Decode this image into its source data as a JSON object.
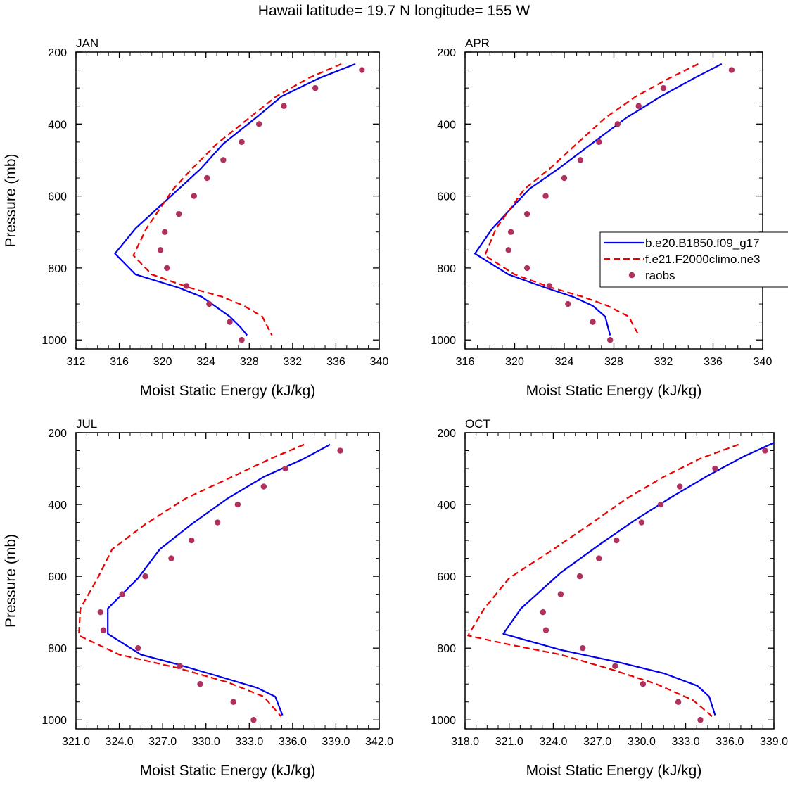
{
  "figure": {
    "title": "Hawaii  latitude= 19.7 N longitude= 155 W"
  },
  "legend": {
    "entries": [
      {
        "label": "b.e20.B1850.f09_g17",
        "style": "line",
        "color": "#0000ee"
      },
      {
        "label": "f.e21.F2000climo.ne3",
        "style": "dashed",
        "color": "#ee0000"
      },
      {
        "label": "raobs",
        "style": "marker",
        "color": "#b03060"
      }
    ]
  },
  "chart_data": [
    {
      "type": "line",
      "panel_label": "JAN",
      "xlabel": "Moist Static Energy (kJ/kg)",
      "ylabel": "Pressure (mb)",
      "xlim": [
        312,
        340
      ],
      "xticks": [
        312,
        316,
        320,
        324,
        328,
        332,
        336,
        340
      ],
      "xtick_labels": [
        "312",
        "316",
        "320",
        "324",
        "328",
        "332",
        "336",
        "340"
      ],
      "ylim": [
        1025,
        200
      ],
      "yticks": [
        200,
        400,
        600,
        800,
        1000
      ],
      "ytick_labels": [
        "200",
        "400",
        "600",
        "800",
        "1000"
      ],
      "series": [
        {
          "name": "b.e20.B1850.f09_g17",
          "style": "line",
          "color": "#0000ee",
          "x": [
            337.8,
            334.5,
            331.0,
            328.6,
            325.6,
            323.5,
            321.5,
            317.5,
            315.6,
            317.5,
            321.5,
            323.6,
            324.8,
            326.2,
            327.2,
            327.8
          ],
          "y": [
            233,
            272,
            323,
            383,
            455,
            525,
            580,
            690,
            760,
            818,
            855,
            880,
            905,
            935,
            965,
            987
          ]
        },
        {
          "name": "f.e21.F2000climo.ne3",
          "style": "dashed",
          "color": "#ee0000",
          "x": [
            336.5,
            333.5,
            330.5,
            328.0,
            325.0,
            322.7,
            321.0,
            318.5,
            317.3,
            319.0,
            322.5,
            325.5,
            327.5,
            329.2,
            330.1
          ],
          "y": [
            233,
            272,
            323,
            383,
            455,
            525,
            580,
            690,
            765,
            818,
            855,
            880,
            905,
            935,
            987
          ]
        },
        {
          "name": "raobs",
          "style": "marker",
          "color": "#b03060",
          "x": [
            338.4,
            334.1,
            331.2,
            328.9,
            327.3,
            325.6,
            324.1,
            322.9,
            321.5,
            320.2,
            319.8,
            320.4,
            322.2,
            324.3,
            326.2,
            327.3
          ],
          "y": [
            250,
            300,
            350,
            400,
            450,
            500,
            550,
            600,
            650,
            700,
            750,
            800,
            850,
            900,
            950,
            1000
          ]
        }
      ]
    },
    {
      "type": "line",
      "panel_label": "APR",
      "xlabel": "Moist Static Energy (kJ/kg)",
      "ylabel": "",
      "xlim": [
        316,
        340
      ],
      "xticks": [
        316,
        320,
        324,
        328,
        332,
        336,
        340
      ],
      "xtick_labels": [
        "316",
        "320",
        "324",
        "328",
        "332",
        "336",
        "340"
      ],
      "ylim": [
        1025,
        200
      ],
      "yticks": [
        200,
        400,
        600,
        800,
        1000
      ],
      "ytick_labels": [
        "200",
        "400",
        "600",
        "800",
        "1000"
      ],
      "series": [
        {
          "name": "b.e20.B1850.f09_g17",
          "style": "line",
          "color": "#0000ee",
          "x": [
            336.7,
            334.5,
            331.8,
            329.0,
            326.2,
            323.5,
            321.2,
            318.2,
            316.8,
            319.5,
            322.5,
            324.7,
            326.3,
            327.3,
            327.7
          ],
          "y": [
            233,
            272,
            323,
            383,
            455,
            525,
            580,
            690,
            760,
            818,
            855,
            880,
            905,
            935,
            987
          ]
        },
        {
          "name": "f.e21.F2000climo.ne3",
          "style": "dashed",
          "color": "#ee0000",
          "x": [
            334.8,
            332.5,
            329.8,
            327.3,
            325.0,
            322.8,
            320.8,
            318.5,
            317.6,
            320.0,
            323.0,
            325.5,
            327.5,
            329.2,
            330.0
          ],
          "y": [
            233,
            272,
            323,
            383,
            455,
            525,
            580,
            690,
            765,
            818,
            855,
            880,
            905,
            935,
            987
          ]
        },
        {
          "name": "raobs",
          "style": "marker",
          "color": "#b03060",
          "x": [
            337.5,
            332.0,
            330.0,
            328.3,
            326.8,
            325.3,
            324.0,
            322.5,
            321.0,
            319.7,
            319.5,
            321.0,
            322.8,
            324.3,
            326.3,
            327.7
          ],
          "y": [
            250,
            300,
            350,
            400,
            450,
            500,
            550,
            600,
            650,
            700,
            750,
            800,
            850,
            900,
            950,
            1000
          ]
        }
      ]
    },
    {
      "type": "line",
      "panel_label": "JUL",
      "xlabel": "Moist Static Energy (kJ/kg)",
      "ylabel": "Pressure (mb)",
      "xlim": [
        321,
        342
      ],
      "xticks": [
        321,
        324,
        327,
        330,
        333,
        336,
        339,
        342
      ],
      "xtick_labels": [
        "321.0",
        "324.0",
        "327.0",
        "330.0",
        "333.0",
        "336.0",
        "339.0",
        "342.0"
      ],
      "ylim": [
        1025,
        200
      ],
      "yticks": [
        200,
        400,
        600,
        800,
        1000
      ],
      "ytick_labels": [
        "200",
        "400",
        "600",
        "800",
        "1000"
      ],
      "series": [
        {
          "name": "b.e20.B1850.f09_g17",
          "style": "line",
          "color": "#0000ee",
          "x": [
            338.6,
            336.8,
            334.0,
            331.5,
            329.0,
            326.8,
            325.3,
            323.2,
            323.2,
            325.5,
            328.0,
            331.0,
            333.5,
            334.8,
            335.3
          ],
          "y": [
            233,
            272,
            323,
            383,
            455,
            525,
            605,
            690,
            760,
            818,
            845,
            880,
            910,
            935,
            987
          ]
        },
        {
          "name": "f.e21.F2000climo.ne3",
          "style": "dashed",
          "color": "#ee0000",
          "x": [
            336.8,
            334.5,
            331.8,
            328.6,
            325.8,
            323.5,
            322.5,
            321.3,
            321.2,
            324.0,
            328.0,
            331.5,
            334.0,
            335.2
          ],
          "y": [
            233,
            272,
            323,
            383,
            455,
            525,
            605,
            690,
            765,
            818,
            855,
            895,
            935,
            990
          ]
        },
        {
          "name": "raobs",
          "style": "marker",
          "color": "#b03060",
          "x": [
            339.3,
            335.5,
            334.0,
            332.2,
            330.8,
            329.0,
            327.6,
            325.8,
            324.2,
            322.7,
            322.9,
            325.3,
            328.2,
            329.6,
            331.9,
            333.3
          ],
          "y": [
            250,
            300,
            350,
            400,
            450,
            500,
            550,
            600,
            650,
            700,
            750,
            800,
            850,
            900,
            950,
            1000
          ]
        }
      ]
    },
    {
      "type": "line",
      "panel_label": "OCT",
      "xlabel": "Moist Static Energy (kJ/kg)",
      "ylabel": "",
      "xlim": [
        318,
        339
      ],
      "xticks": [
        318,
        321,
        324,
        327,
        330,
        333,
        336,
        339
      ],
      "xtick_labels": [
        "318.0",
        "321.0",
        "324.0",
        "327.0",
        "330.0",
        "333.0",
        "336.0",
        "339.0"
      ],
      "ylim": [
        1025,
        200
      ],
      "yticks": [
        200,
        400,
        600,
        800,
        1000
      ],
      "ytick_labels": [
        "200",
        "400",
        "600",
        "800",
        "1000"
      ],
      "series": [
        {
          "name": "b.e20.B1850.f09_g17",
          "style": "line",
          "color": "#0000ee",
          "x": [
            339.0,
            337.0,
            334.5,
            332.0,
            329.5,
            327.2,
            324.5,
            321.8,
            320.6,
            324.5,
            328.5,
            331.5,
            333.8,
            334.6,
            335.0
          ],
          "y": [
            228,
            265,
            320,
            380,
            445,
            510,
            590,
            690,
            760,
            805,
            840,
            870,
            905,
            935,
            987
          ]
        },
        {
          "name": "f.e21.F2000climo.ne3",
          "style": "dashed",
          "color": "#ee0000",
          "x": [
            336.6,
            334.0,
            331.5,
            329.0,
            326.5,
            324.0,
            321.0,
            319.3,
            318.2,
            321.0,
            324.5,
            328.0,
            331.0,
            333.5,
            334.8
          ],
          "y": [
            233,
            272,
            323,
            383,
            455,
            525,
            605,
            690,
            765,
            790,
            818,
            860,
            900,
            945,
            990
          ]
        },
        {
          "name": "raobs",
          "style": "marker",
          "color": "#b03060",
          "x": [
            338.4,
            335.0,
            332.6,
            331.3,
            330.0,
            328.3,
            327.1,
            325.8,
            324.5,
            323.3,
            323.5,
            326.0,
            328.2,
            330.1,
            332.5,
            334.0
          ],
          "y": [
            250,
            300,
            350,
            400,
            450,
            500,
            550,
            600,
            650,
            700,
            750,
            800,
            850,
            900,
            950,
            1000
          ]
        }
      ]
    }
  ]
}
